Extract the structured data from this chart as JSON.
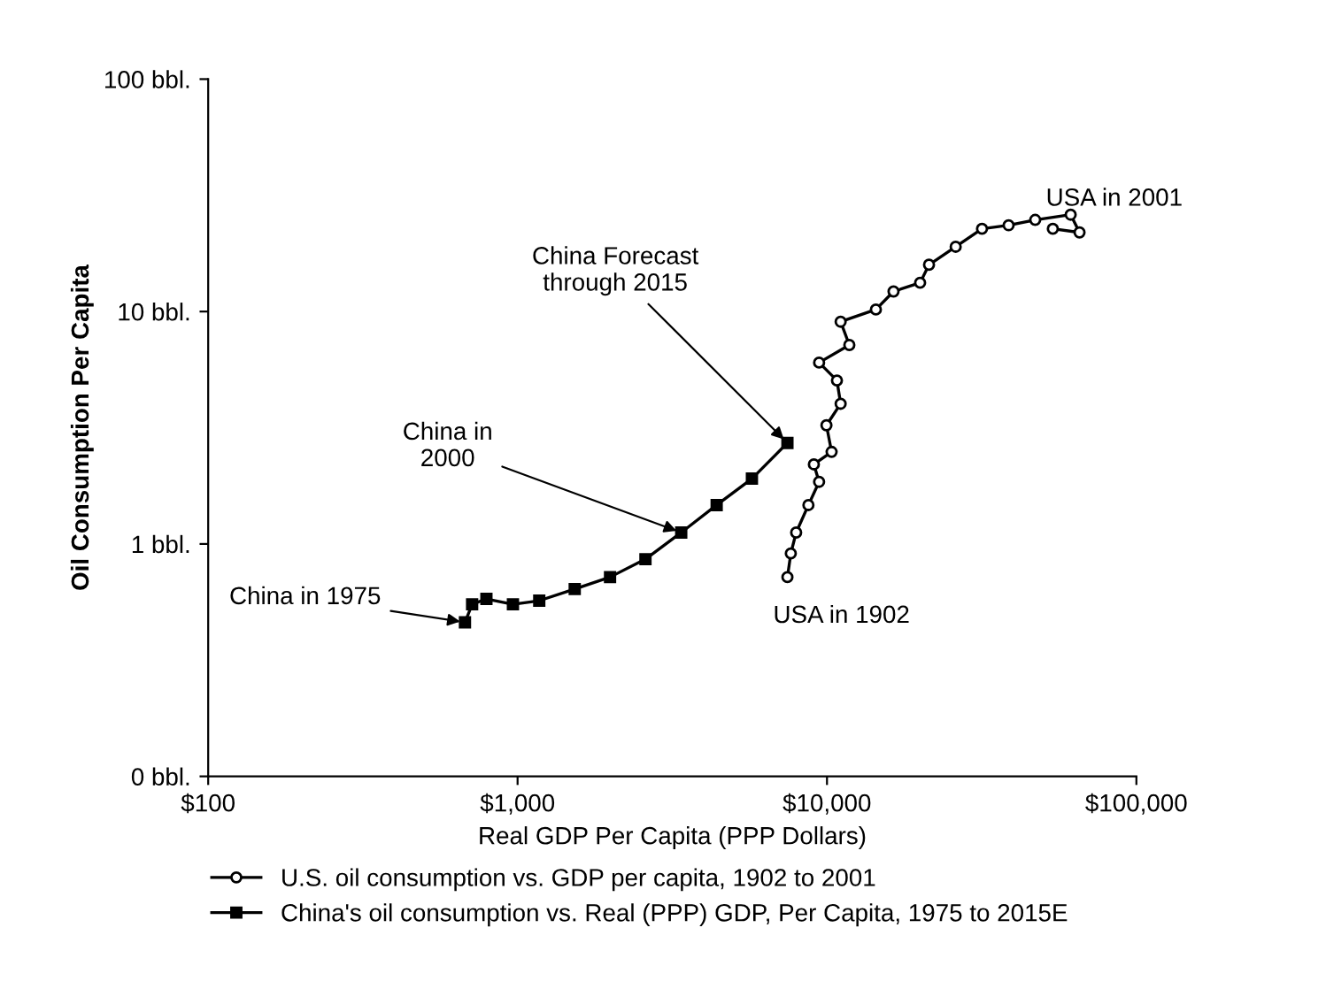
{
  "chart_data": {
    "type": "line",
    "xlabel": "Real GDP Per Capita (PPP Dollars)",
    "ylabel": "Oil Consumption Per Capita",
    "log": "xy",
    "xlim": [
      100,
      100000
    ],
    "xticks": [
      {
        "value": 100,
        "label": "$100"
      },
      {
        "value": 1000,
        "label": "$1,000"
      },
      {
        "value": 10000,
        "label": "$10,000"
      },
      {
        "value": 100000,
        "label": "$100,000"
      }
    ],
    "ylim": [
      0.1,
      100
    ],
    "yticks": [
      {
        "value": 0.1,
        "label": "0 bbl."
      },
      {
        "value": 1,
        "label": "1 bbl."
      },
      {
        "value": 10,
        "label": "10 bbl."
      },
      {
        "value": 100,
        "label": "100 bbl."
      }
    ],
    "grid": false,
    "legend": "bottom",
    "series": [
      {
        "name": "U.S. oil consumption vs. GDP per capita, 1902 to 2001",
        "color": "#000000",
        "marker": "circle",
        "x": [
          7450,
          7640,
          7950,
          8710,
          9430,
          9070,
          10350,
          9960,
          11070,
          10770,
          9430,
          11810,
          11070,
          14390,
          16410,
          20000,
          21370,
          26060,
          31700,
          38640,
          47100,
          61320,
          65500,
          53700
        ],
        "values": [
          0.72,
          0.91,
          1.12,
          1.47,
          1.85,
          2.2,
          2.49,
          3.24,
          4.01,
          5.05,
          6.03,
          7.18,
          9.04,
          10.2,
          12.2,
          13.3,
          15.9,
          19.0,
          22.7,
          23.5,
          24.8,
          26.1,
          21.9,
          22.7
        ]
      },
      {
        "name": "China's oil consumption vs. Real (PPP) GDP, Per Capita, 1975 to 2015E",
        "color": "#000000",
        "marker": "square",
        "x": [
          676,
          713,
          793,
          966,
          1175,
          1530,
          1990,
          2590,
          3380,
          4400,
          5720,
          7450
        ],
        "values": [
          0.46,
          0.55,
          0.58,
          0.55,
          0.57,
          0.64,
          0.72,
          0.86,
          1.12,
          1.47,
          1.91,
          2.72
        ]
      }
    ],
    "annotations": [
      {
        "text": "China in 1975",
        "x": 676,
        "y": 0.46
      },
      {
        "text": "China in\n2000",
        "x": 3380,
        "y": 1.12
      },
      {
        "text": "China Forecast\nthrough 2015",
        "x": 7450,
        "y": 2.72
      },
      {
        "text": "USA in 1902",
        "x": 7450,
        "y": 0.72
      },
      {
        "text": "USA in 2001",
        "x": 53700,
        "y": 22.7
      }
    ]
  }
}
